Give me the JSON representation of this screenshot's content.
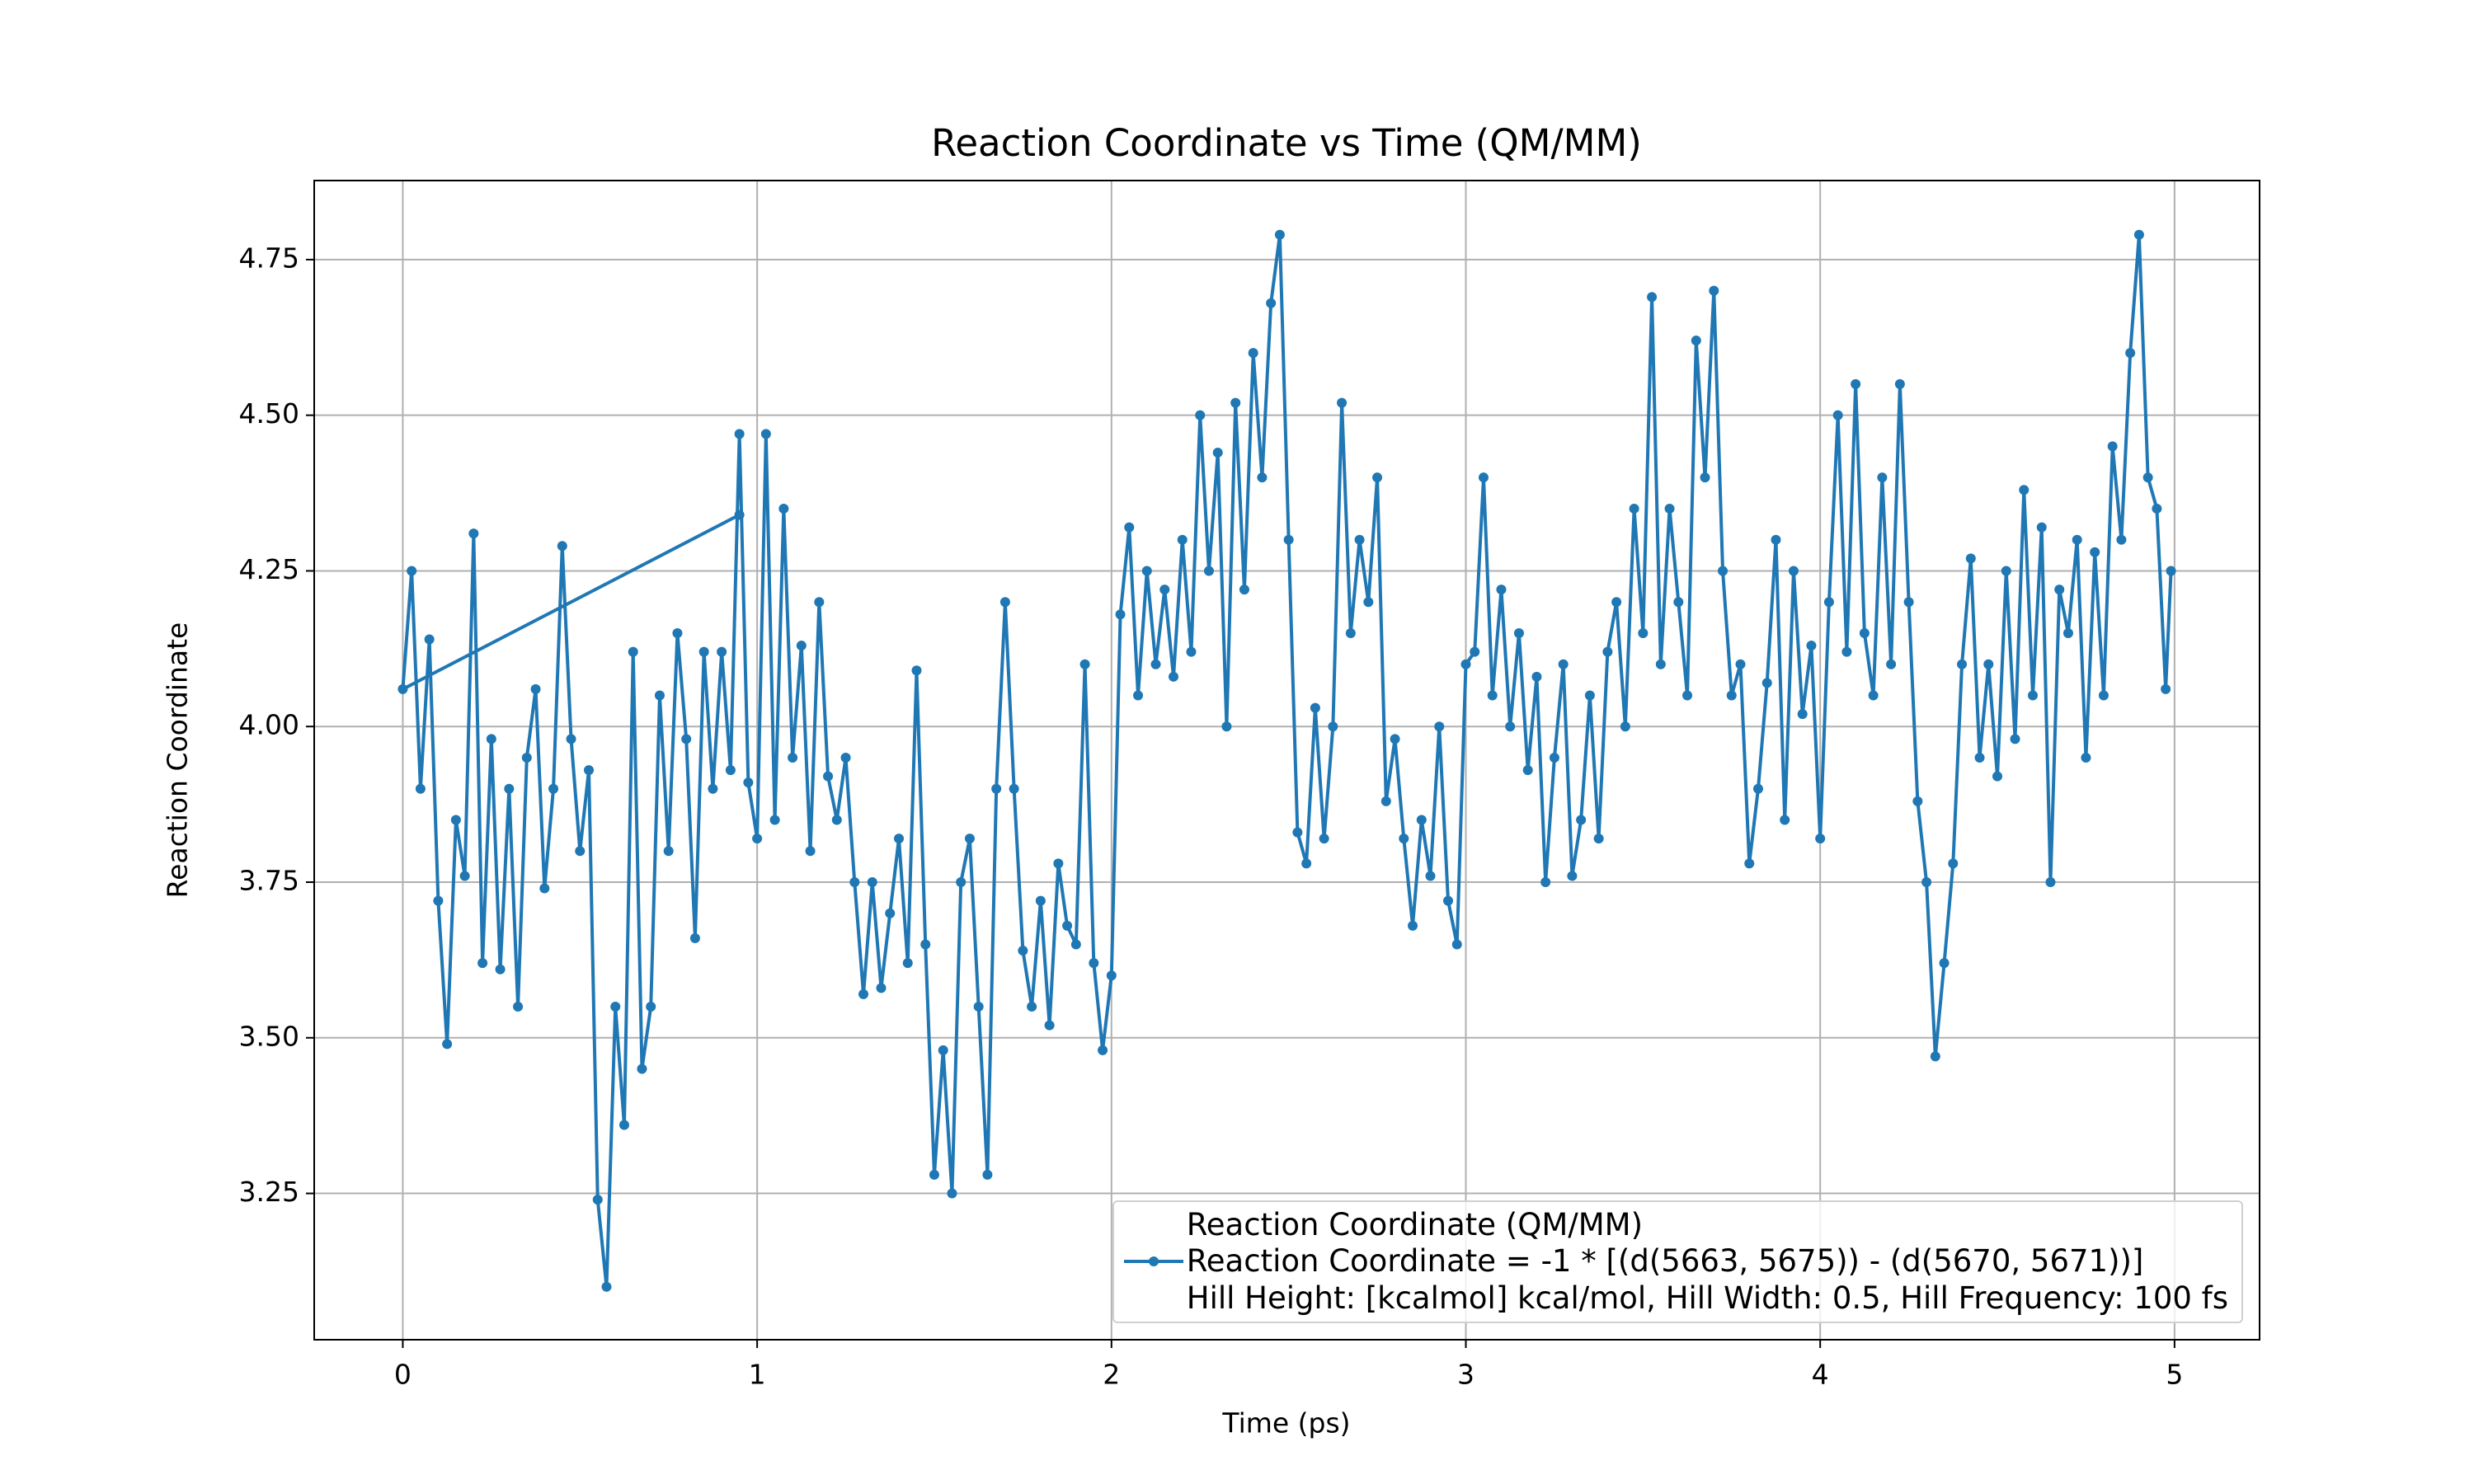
{
  "chart_data": {
    "type": "line",
    "title": "Reaction Coordinate vs Time (QM/MM)",
    "x_label": "Time (ps)",
    "y_label": "Reaction Coordinate",
    "xlim": [
      -0.25,
      5.24
    ],
    "ylim": [
      3.015,
      4.877
    ],
    "xticks": [
      0,
      1,
      2,
      3,
      4,
      5
    ],
    "yticks": [
      3.25,
      {
        "value": 3.5,
        "label": "3.50"
      },
      3.75,
      {
        "value": 4,
        "label": "4.00"
      },
      4.25,
      {
        "value": 4.5,
        "label": "4.50"
      },
      4.75
    ],
    "grid": true,
    "legend": "lower right",
    "marker": true,
    "x": [
      0.95,
      0,
      0.025,
      0.05,
      0.075,
      0.1,
      0.125,
      0.15,
      0.175,
      0.2,
      0.225,
      0.25,
      0.275,
      0.3,
      0.325,
      0.35,
      0.375,
      0.4,
      0.425,
      0.45,
      0.475,
      0.5,
      0.525,
      0.55,
      0.575,
      0.6,
      0.625,
      0.65,
      0.675,
      0.7,
      0.725,
      0.75,
      0.775,
      0.8,
      0.825,
      0.85,
      0.875,
      0.9,
      0.925,
      0.95,
      0.975,
      1,
      1.025,
      1.05,
      1.075,
      1.1,
      1.125,
      1.15,
      1.175,
      1.2,
      1.225,
      1.25,
      1.275,
      1.3,
      1.325,
      1.35,
      1.375,
      1.4,
      1.425,
      1.45,
      1.475,
      1.5,
      1.525,
      1.55,
      1.575,
      1.6,
      1.625,
      1.65,
      1.675,
      1.7,
      1.725,
      1.75,
      1.775,
      1.8,
      1.825,
      1.85,
      1.875,
      1.9,
      1.925,
      1.95,
      1.975,
      2,
      2.025,
      2.05,
      2.075,
      2.1,
      2.125,
      2.15,
      2.175,
      2.2,
      2.225,
      2.25,
      2.275,
      2.3,
      2.325,
      2.35,
      2.375,
      2.4,
      2.425,
      2.45,
      2.475,
      2.5,
      2.525,
      2.55,
      2.575,
      2.6,
      2.625,
      2.65,
      2.675,
      2.7,
      2.725,
      2.75,
      2.775,
      2.8,
      2.825,
      2.85,
      2.875,
      2.9,
      2.925,
      2.95,
      2.975,
      3,
      3.025,
      3.05,
      3.075,
      3.1,
      3.125,
      3.15,
      3.175,
      3.2,
      3.225,
      3.25,
      3.275,
      3.3,
      3.325,
      3.35,
      3.375,
      3.4,
      3.425,
      3.45,
      3.475,
      3.5,
      3.525,
      3.55,
      3.575,
      3.6,
      3.625,
      3.65,
      3.675,
      3.7,
      3.725,
      3.75,
      3.775,
      3.8,
      3.825,
      3.85,
      3.875,
      3.9,
      3.925,
      3.95,
      3.975,
      4,
      4.025,
      4.05,
      4.075,
      4.1,
      4.125,
      4.15,
      4.175,
      4.2,
      4.225,
      4.25,
      4.275,
      4.3,
      4.325,
      4.35,
      4.375,
      4.4,
      4.425,
      4.45,
      4.475,
      4.5,
      4.525,
      4.55,
      4.575,
      4.6,
      4.625,
      4.65,
      4.675,
      4.7,
      4.725,
      4.75,
      4.775,
      4.8,
      4.825,
      4.85,
      4.875,
      4.9,
      4.925,
      4.95,
      4.975,
      4.99
    ],
    "series": [
      {
        "name": "Reaction Coordinate (QM/MM)\nReaction Coordinate = -1 * [(d(5663, 5675)) - (d(5670, 5671))]\nHill Height: [kcalmol] kcal/mol, Hill Width: 0.5, Hill Frequency: 100 fs",
        "color": "#1f77b4",
        "values": [
          4.34,
          4.06,
          4.25,
          3.9,
          4.14,
          3.72,
          3.49,
          3.85,
          3.76,
          4.31,
          3.62,
          3.98,
          3.61,
          3.9,
          3.55,
          3.95,
          4.06,
          3.74,
          3.9,
          4.29,
          3.98,
          3.8,
          3.93,
          3.24,
          3.1,
          3.55,
          3.36,
          4.12,
          3.45,
          3.55,
          4.05,
          3.8,
          4.15,
          3.98,
          3.66,
          4.12,
          3.9,
          4.12,
          3.93,
          4.47,
          3.91,
          3.82,
          4.47,
          3.85,
          4.35,
          3.95,
          4.13,
          3.8,
          4.2,
          3.92,
          3.85,
          3.95,
          3.75,
          3.57,
          3.75,
          3.58,
          3.7,
          3.82,
          3.62,
          4.09,
          3.65,
          3.28,
          3.48,
          3.25,
          3.75,
          3.82,
          3.55,
          3.28,
          3.9,
          4.2,
          3.9,
          3.64,
          3.55,
          3.72,
          3.52,
          3.78,
          3.68,
          3.65,
          4.1,
          3.62,
          3.48,
          3.6,
          4.18,
          4.32,
          4.05,
          4.25,
          4.1,
          4.22,
          4.08,
          4.3,
          4.12,
          4.5,
          4.25,
          4.44,
          4,
          4.52,
          4.22,
          4.6,
          4.4,
          4.68,
          4.79,
          4.3,
          3.83,
          3.78,
          4.03,
          3.82,
          4,
          4.52,
          4.15,
          4.3,
          4.2,
          4.4,
          3.88,
          3.98,
          3.82,
          3.68,
          3.85,
          3.76,
          4,
          3.72,
          3.65,
          4.1,
          4.12,
          4.4,
          4.05,
          4.22,
          4,
          4.15,
          3.93,
          4.08,
          3.75,
          3.95,
          4.1,
          3.76,
          3.85,
          4.05,
          3.82,
          4.12,
          4.2,
          4,
          4.35,
          4.15,
          4.69,
          4.1,
          4.35,
          4.2,
          4.05,
          4.62,
          4.4,
          4.7,
          4.25,
          4.05,
          4.1,
          3.78,
          3.9,
          4.07,
          4.3,
          3.85,
          4.25,
          4.02,
          4.13,
          3.82,
          4.2,
          4.5,
          4.12,
          4.55,
          4.15,
          4.05,
          4.4,
          4.1,
          4.55,
          4.2,
          3.88,
          3.75,
          3.47,
          3.62,
          3.78,
          4.1,
          4.27,
          3.95,
          4.1,
          3.92,
          4.25,
          3.98,
          4.38,
          4.05,
          4.32,
          3.75,
          4.22,
          4.15,
          4.3,
          3.95,
          4.28,
          4.05,
          4.45,
          4.3,
          4.6,
          4.79,
          4.4,
          4.35,
          4.06,
          4.25
        ]
      }
    ]
  }
}
